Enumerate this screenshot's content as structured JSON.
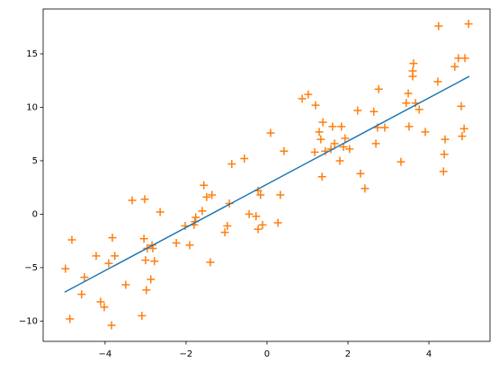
{
  "chart_data": {
    "type": "scatter",
    "xlim": [
      -5.53,
      5.51
    ],
    "ylim": [
      -11.9,
      19.2
    ],
    "xticks": [
      {
        "value": -4,
        "label": "−4"
      },
      {
        "value": -2,
        "label": "−2"
      },
      0,
      2,
      4
    ],
    "yticks": [
      {
        "value": -10,
        "label": "−10"
      },
      {
        "value": -5,
        "label": "−5"
      },
      0,
      5,
      10,
      15
    ],
    "series": [
      {
        "type": "scatter",
        "color": "#ff7f0e",
        "x": [
          -4.98,
          -4.87,
          -4.82,
          -4.58,
          -4.51,
          -4.22,
          -4.11,
          -4.02,
          -3.91,
          -3.84,
          -3.82,
          -3.76,
          -3.49,
          -3.33,
          -3.09,
          -3.02,
          -3.04,
          -3.0,
          -2.98,
          -2.96,
          -2.87,
          -2.84,
          -2.78,
          -2.82,
          -2.64,
          -2.24,
          -2.02,
          -1.91,
          -1.8,
          -1.76,
          -1.78,
          -1.6,
          -1.56,
          -1.49,
          -1.36,
          -1.4,
          -1.04,
          -0.98,
          -0.93,
          -0.87,
          -0.56,
          -0.44,
          -0.27,
          -0.22,
          -0.22,
          -0.16,
          -0.11,
          0.09,
          0.27,
          0.33,
          0.42,
          0.87,
          1.02,
          1.18,
          1.2,
          1.29,
          1.33,
          1.36,
          1.38,
          1.44,
          1.58,
          1.62,
          1.67,
          1.8,
          1.84,
          1.89,
          1.93,
          2.04,
          2.24,
          2.31,
          2.42,
          2.64,
          2.69,
          2.76,
          2.73,
          2.91,
          3.31,
          3.44,
          3.49,
          3.51,
          3.6,
          3.6,
          3.62,
          3.67,
          3.76,
          3.91,
          4.22,
          4.24,
          4.36,
          4.38,
          4.4,
          4.64,
          4.73,
          4.8,
          4.82,
          4.89,
          4.87,
          4.98
        ],
        "values": [
          -5.1,
          -9.8,
          -2.4,
          -7.5,
          -5.9,
          -3.9,
          -8.2,
          -8.7,
          -4.6,
          -10.4,
          -2.2,
          -3.9,
          -6.6,
          1.3,
          -9.5,
          1.4,
          -2.3,
          -4.3,
          -7.1,
          -3.2,
          -6.1,
          -2.9,
          -4.4,
          -3.2,
          0.2,
          -2.7,
          -1.1,
          -2.9,
          -1.0,
          -0.3,
          -0.7,
          0.3,
          2.7,
          1.6,
          1.8,
          -4.5,
          -1.7,
          -1.1,
          1.0,
          4.7,
          5.2,
          0.0,
          -0.2,
          2.2,
          -1.4,
          1.8,
          -1.0,
          7.6,
          -0.8,
          1.8,
          5.9,
          10.8,
          11.2,
          5.8,
          10.2,
          7.7,
          7.0,
          3.5,
          8.6,
          5.9,
          6.1,
          8.2,
          6.6,
          5.0,
          8.2,
          6.3,
          7.1,
          6.1,
          9.7,
          3.8,
          2.4,
          9.6,
          6.6,
          11.7,
          8.1,
          8.1,
          4.9,
          10.4,
          11.3,
          8.2,
          13.4,
          12.9,
          14.1,
          10.4,
          9.8,
          7.7,
          12.4,
          17.6,
          4.0,
          5.6,
          7.0,
          13.8,
          14.6,
          10.1,
          7.3,
          14.6,
          8.0,
          17.8
        ]
      },
      {
        "type": "line",
        "color": "#1f77b4",
        "x": [
          -5,
          5
        ],
        "values": [
          -7.3,
          12.9
        ]
      }
    ]
  }
}
